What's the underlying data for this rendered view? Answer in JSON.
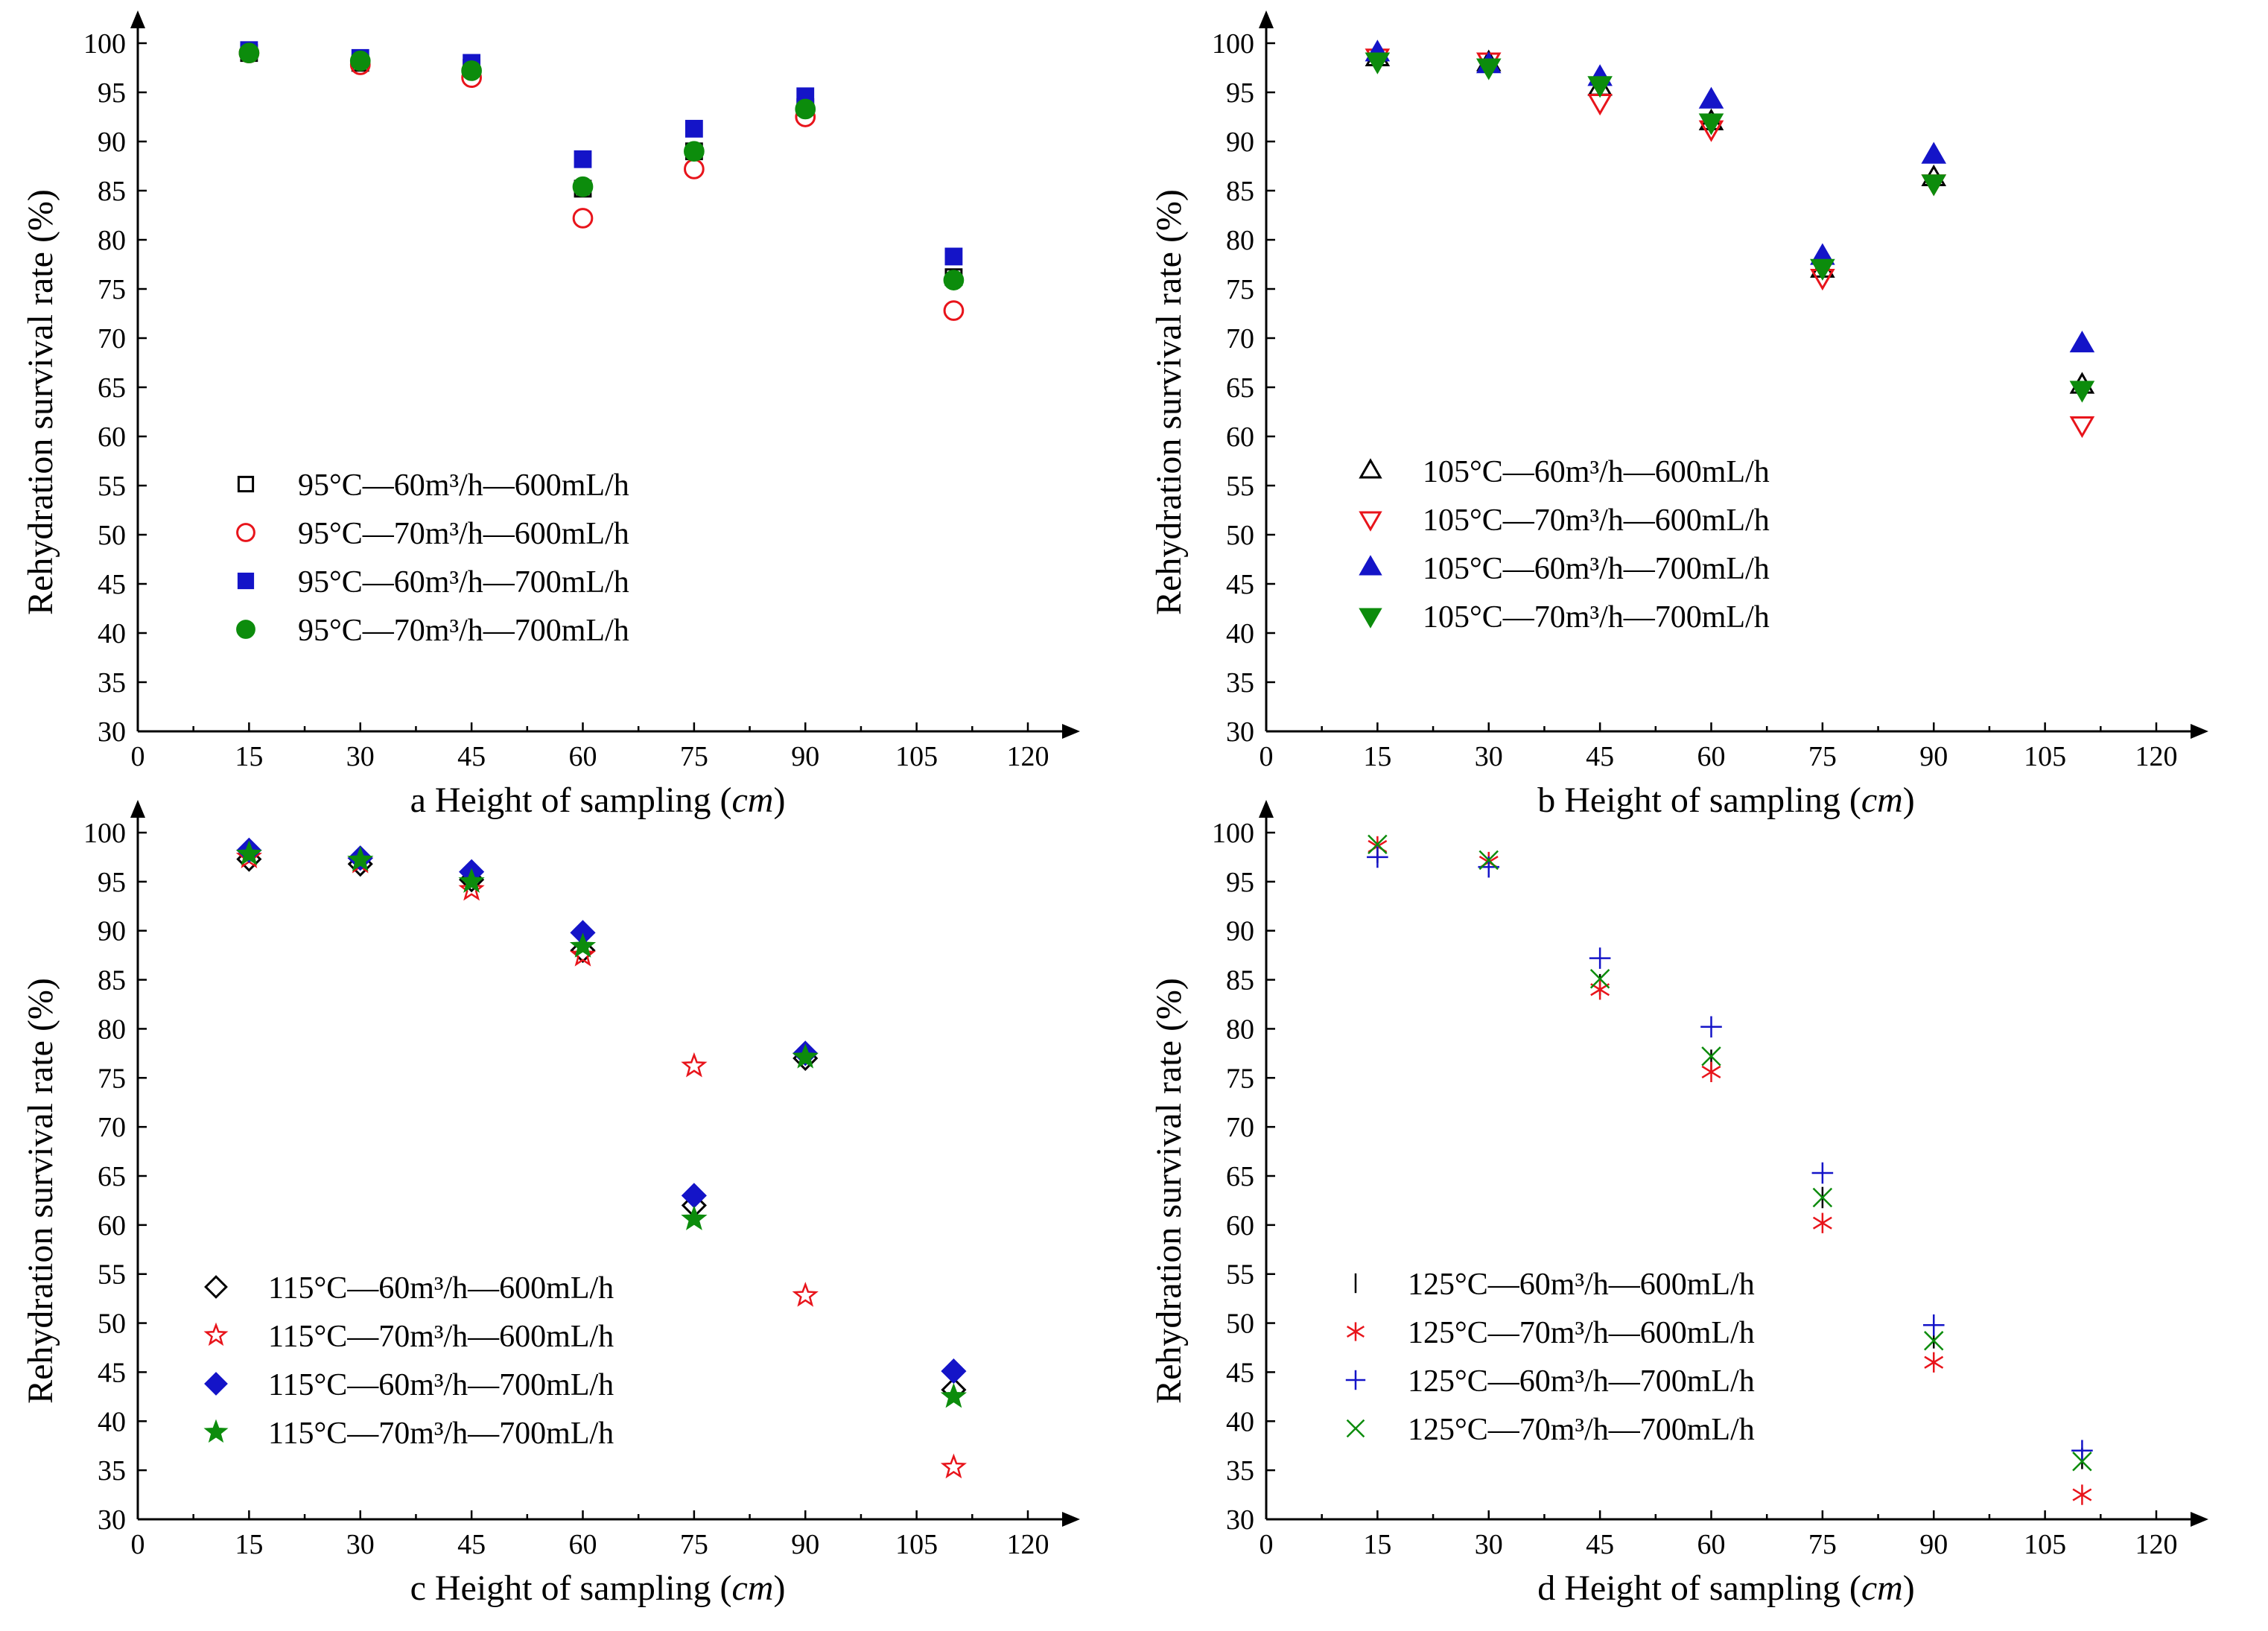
{
  "colors": {
    "black": "#000000",
    "red": "#e8141b",
    "blue": "#1414c8",
    "green": "#0c8c0c",
    "axis": "#000000"
  },
  "chart_data": [
    {
      "panel": "a",
      "type": "scatter",
      "xlabel_prefix": "a Height of sampling (",
      "xlabel_unit": "cm",
      "xlabel_suffix": ")",
      "ylabel": "Rehydration survival rate (%)",
      "xlim": [
        0,
        120
      ],
      "ylim": [
        30,
        100
      ],
      "xticks": [
        0,
        15,
        30,
        45,
        60,
        75,
        90,
        105,
        120
      ],
      "yticks": [
        30,
        35,
        40,
        45,
        50,
        55,
        60,
        65,
        70,
        75,
        80,
        85,
        90,
        95,
        100
      ],
      "legend_position": "center-left",
      "series": [
        {
          "name": "95°C—60m³/h—600mL/h",
          "marker": "square-open",
          "color": "#000000",
          "x": [
            15,
            30,
            45,
            60,
            75,
            90,
            110
          ],
          "y": [
            99.0,
            98.0,
            97.5,
            85.2,
            89.0,
            93.5,
            76.2
          ]
        },
        {
          "name": "95°C—70m³/h—600mL/h",
          "marker": "circle-open",
          "color": "#e8141b",
          "x": [
            15,
            30,
            45,
            60,
            75,
            90,
            110
          ],
          "y": [
            99.0,
            97.8,
            96.5,
            82.2,
            87.2,
            92.5,
            72.8
          ]
        },
        {
          "name": "95°C—60m³/h—700mL/h",
          "marker": "square-filled",
          "color": "#1414c8",
          "x": [
            15,
            30,
            45,
            60,
            75,
            90,
            110
          ],
          "y": [
            99.3,
            98.5,
            98.0,
            88.2,
            91.3,
            94.6,
            78.3
          ]
        },
        {
          "name": "95°C—70m³/h—700mL/h",
          "marker": "circle-filled",
          "color": "#0c8c0c",
          "x": [
            15,
            30,
            45,
            60,
            75,
            90,
            110
          ],
          "y": [
            99.0,
            98.2,
            97.2,
            85.4,
            89.0,
            93.3,
            75.9
          ]
        }
      ]
    },
    {
      "panel": "b",
      "type": "scatter",
      "xlabel_prefix": "b Height of sampling (",
      "xlabel_unit": "cm",
      "xlabel_suffix": ")",
      "ylabel": "Rehydration survival rate (%)",
      "xlim": [
        0,
        120
      ],
      "ylim": [
        30,
        100
      ],
      "xticks": [
        0,
        15,
        30,
        45,
        60,
        75,
        90,
        105,
        120
      ],
      "yticks": [
        30,
        35,
        40,
        45,
        50,
        55,
        60,
        65,
        70,
        75,
        80,
        85,
        90,
        95,
        100
      ],
      "legend_position": "center-left",
      "series": [
        {
          "name": "105°C—60m³/h—600mL/h",
          "marker": "triangle-up-open",
          "color": "#000000",
          "x": [
            15,
            30,
            45,
            60,
            75,
            90,
            110
          ],
          "y": [
            98.5,
            98.0,
            95.5,
            92.0,
            77.0,
            86.3,
            65.2
          ]
        },
        {
          "name": "105°C—70m³/h—600mL/h",
          "marker": "triangle-down-open",
          "color": "#e8141b",
          "x": [
            15,
            30,
            45,
            60,
            75,
            90,
            110
          ],
          "y": [
            98.6,
            98.2,
            94.0,
            91.3,
            76.2,
            85.8,
            61.2
          ]
        },
        {
          "name": "105°C—60m³/h—700mL/h",
          "marker": "triangle-up-filled",
          "color": "#1414c8",
          "x": [
            15,
            30,
            45,
            60,
            75,
            90,
            110
          ],
          "y": [
            99.0,
            97.8,
            96.5,
            94.2,
            78.3,
            88.6,
            69.4
          ]
        },
        {
          "name": "105°C—70m³/h—700mL/h",
          "marker": "triangle-down-filled",
          "color": "#0c8c0c",
          "x": [
            15,
            30,
            45,
            60,
            75,
            90,
            110
          ],
          "y": [
            98.2,
            97.6,
            95.8,
            92.0,
            77.2,
            85.8,
            64.8
          ]
        }
      ]
    },
    {
      "panel": "c",
      "type": "scatter",
      "xlabel_prefix": "c Height of sampling (",
      "xlabel_unit": "cm",
      "xlabel_suffix": ")",
      "ylabel": "Rehydration survival rate (%)",
      "xlim": [
        0,
        120
      ],
      "ylim": [
        30,
        100
      ],
      "xticks": [
        0,
        15,
        30,
        45,
        60,
        75,
        90,
        105,
        120
      ],
      "yticks": [
        30,
        35,
        40,
        45,
        50,
        55,
        60,
        65,
        70,
        75,
        80,
        85,
        90,
        95,
        100
      ],
      "legend_position": "bottom-left",
      "series": [
        {
          "name": "115°C—60m³/h—600mL/h",
          "marker": "diamond-open",
          "color": "#000000",
          "x": [
            15,
            30,
            45,
            60,
            75,
            90,
            110
          ],
          "y": [
            97.3,
            96.8,
            95.2,
            88.0,
            62.0,
            77.0,
            43.2
          ]
        },
        {
          "name": "115°C—70m³/h—600mL/h",
          "marker": "star-open",
          "color": "#e8141b",
          "x": [
            15,
            30,
            45,
            60,
            75,
            90,
            110
          ],
          "y": [
            97.5,
            97.0,
            94.2,
            87.5,
            76.2,
            52.8,
            35.3
          ]
        },
        {
          "name": "115°C—60m³/h—700mL/h",
          "marker": "diamond-filled",
          "color": "#1414c8",
          "x": [
            15,
            30,
            45,
            60,
            75,
            90,
            110
          ],
          "y": [
            98.2,
            97.4,
            96.0,
            89.8,
            63.0,
            77.5,
            45.1
          ]
        },
        {
          "name": "115°C—70m³/h—700mL/h",
          "marker": "star-filled",
          "color": "#0c8c0c",
          "x": [
            15,
            30,
            45,
            60,
            75,
            90,
            110
          ],
          "y": [
            97.8,
            97.2,
            95.0,
            88.4,
            60.6,
            77.1,
            42.5
          ]
        }
      ]
    },
    {
      "panel": "d",
      "type": "scatter",
      "xlabel_prefix": "d Height of sampling (",
      "xlabel_unit": "cm",
      "xlabel_suffix": ")",
      "ylabel": "Rehydration survival rate (%)",
      "xlim": [
        0,
        120
      ],
      "ylim": [
        30,
        100
      ],
      "xticks": [
        0,
        15,
        30,
        45,
        60,
        75,
        90,
        105,
        120
      ],
      "yticks": [
        30,
        35,
        40,
        45,
        50,
        55,
        60,
        65,
        70,
        75,
        80,
        85,
        90,
        95,
        100
      ],
      "legend_position": "bottom-left",
      "series": [
        {
          "name": "125°C—60m³/h—600mL/h",
          "marker": "vline",
          "color": "#000000",
          "x": [
            15,
            30,
            45,
            60,
            75,
            90,
            110
          ],
          "y": [
            98.0,
            96.8,
            84.5,
            76.8,
            62.8,
            48.5,
            36.2
          ]
        },
        {
          "name": "125°C—70m³/h—600mL/h",
          "marker": "asterisk",
          "color": "#e8141b",
          "x": [
            15,
            30,
            45,
            60,
            75,
            90,
            110
          ],
          "y": [
            98.6,
            97.0,
            84.0,
            75.6,
            60.2,
            46.0,
            32.5
          ]
        },
        {
          "name": "125°C—60m³/h—700mL/h",
          "marker": "plus",
          "color": "#1414c8",
          "x": [
            15,
            30,
            45,
            60,
            75,
            90,
            110
          ],
          "y": [
            97.5,
            96.5,
            87.2,
            80.2,
            65.3,
            49.8,
            37.0
          ]
        },
        {
          "name": "125°C—70m³/h—700mL/h",
          "marker": "x-cross",
          "color": "#0c8c0c",
          "x": [
            15,
            30,
            45,
            60,
            75,
            90,
            110
          ],
          "y": [
            98.8,
            97.2,
            85.1,
            77.2,
            62.8,
            48.2,
            35.9
          ]
        }
      ]
    }
  ]
}
